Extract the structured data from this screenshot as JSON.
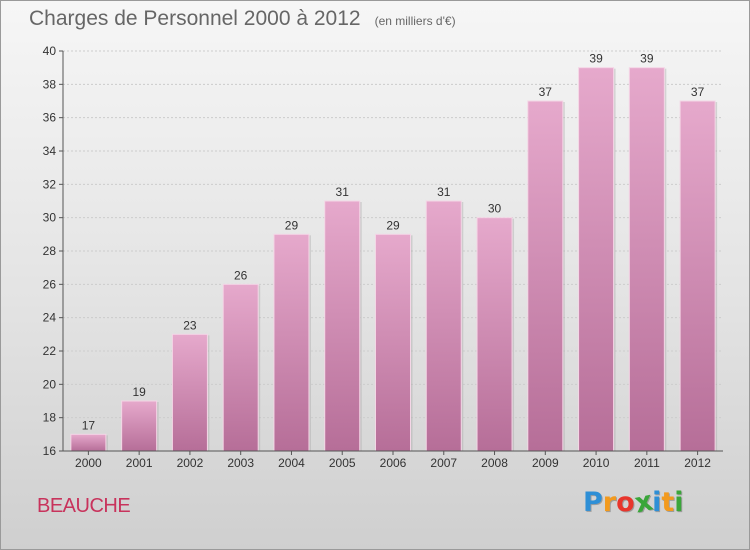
{
  "title": "Charges de Personnel 2000 à 2012",
  "subtitle": "(en milliers d'€)",
  "place": "BEAUCHE",
  "logo": {
    "letters": [
      "P",
      "r",
      "o",
      "x",
      "i",
      "t",
      "i"
    ],
    "colors": [
      "#2e8fd6",
      "#f29a1e",
      "#e8352c",
      "#3aa63a",
      "#2e8fd6",
      "#f29a1e",
      "#3aa63a"
    ]
  },
  "colors": {
    "bar_top": "#e6a9cc",
    "bar_bottom": "#b66e98",
    "axis_text": "#333333",
    "grid": "#cccccc"
  },
  "chart_data": {
    "type": "bar",
    "title": "Charges de Personnel 2000 à 2012",
    "subtitle": "(en milliers d'€)",
    "categories": [
      "2000",
      "2001",
      "2002",
      "2003",
      "2004",
      "2005",
      "2006",
      "2007",
      "2008",
      "2009",
      "2010",
      "2011",
      "2012"
    ],
    "values": [
      17,
      19,
      23,
      26,
      29,
      31,
      29,
      31,
      30,
      37,
      39,
      39,
      37
    ],
    "ylim": [
      16,
      40
    ],
    "yticks": [
      16,
      18,
      20,
      22,
      24,
      26,
      28,
      30,
      32,
      34,
      36,
      38,
      40
    ],
    "grid": true,
    "data_labels": true
  }
}
